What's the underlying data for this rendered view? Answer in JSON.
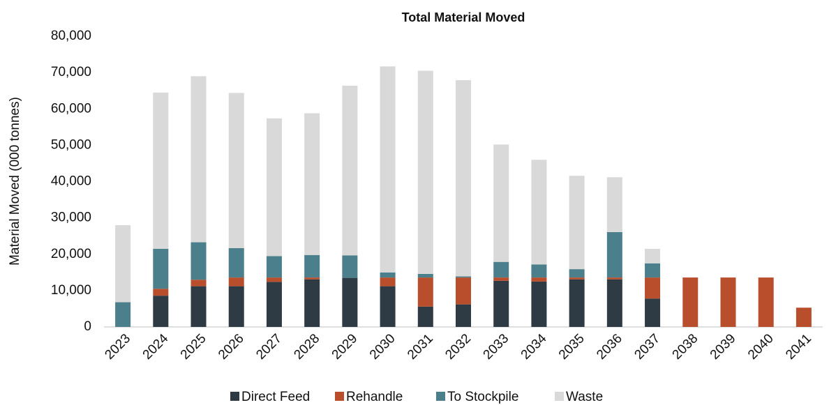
{
  "chart_data": {
    "type": "stacked_bar",
    "title": "Total Material Moved",
    "y_label": "Material Moved (000 tonnes)",
    "categories": [
      "2023",
      "2024",
      "2025",
      "2026",
      "2027",
      "2028",
      "2029",
      "2030",
      "2031",
      "2032",
      "2033",
      "2034",
      "2035",
      "2036",
      "2037",
      "2038",
      "2039",
      "2040",
      "2041"
    ],
    "series": [
      {
        "name": "Direct Feed",
        "color": "#2e3b44",
        "values": [
          0,
          8600,
          11200,
          11200,
          12400,
          13100,
          13500,
          11200,
          5600,
          6200,
          12700,
          12500,
          13100,
          13100,
          7800,
          0,
          0,
          0,
          0
        ]
      },
      {
        "name": "Rehandle",
        "color": "#b84e2b",
        "values": [
          0,
          1900,
          1800,
          2400,
          1200,
          500,
          0,
          2400,
          8000,
          7400,
          900,
          1100,
          500,
          500,
          5800,
          13600,
          13600,
          13600,
          5300
        ]
      },
      {
        "name": "To Stockpile",
        "color": "#4b7f8c",
        "values": [
          6800,
          11000,
          10300,
          8100,
          5900,
          6200,
          6200,
          1400,
          1000,
          300,
          4300,
          3600,
          2300,
          12500,
          3900,
          0,
          0,
          0,
          0
        ]
      },
      {
        "name": "Waste",
        "color": "#d9d9d9",
        "values": [
          21200,
          43000,
          45700,
          42700,
          37900,
          39000,
          46700,
          56700,
          55900,
          54000,
          32300,
          28800,
          25700,
          15100,
          4000,
          0,
          0,
          0,
          0
        ]
      }
    ],
    "ylim": [
      0,
      80000
    ],
    "yticks": [
      0,
      {
        "value": 10000,
        "label": "10,000"
      },
      {
        "value": 20000,
        "label": "20,000"
      },
      {
        "value": 30000,
        "label": "30,000"
      },
      {
        "value": 40000,
        "label": "40,000"
      },
      {
        "value": 50000,
        "label": "50,000"
      },
      {
        "value": 60000,
        "label": "60,000"
      },
      {
        "value": 70000,
        "label": "70,000"
      },
      {
        "value": 80000,
        "label": "80,000"
      }
    ],
    "legend": "bottom"
  }
}
